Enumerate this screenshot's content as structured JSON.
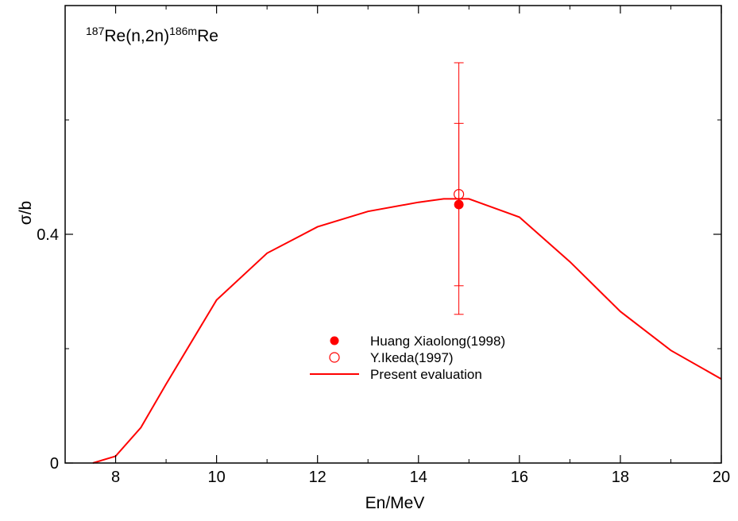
{
  "chart_data": {
    "type": "line",
    "title_parts": {
      "pre_sup": "187",
      "main": "Re(n,2n)",
      "mid_sup": "186m",
      "post": "Re"
    },
    "xlabel": "En/MeV",
    "ylabel": "σ/b",
    "xlim": [
      7,
      20
    ],
    "ylim": [
      0,
      0.8
    ],
    "x_ticks": [
      {
        "value": 8,
        "label": "8"
      },
      {
        "value": 10,
        "label": "10"
      },
      {
        "value": 12,
        "label": "12"
      },
      {
        "value": 14,
        "label": "14"
      },
      {
        "value": 16,
        "label": "16"
      },
      {
        "value": 18,
        "label": "18"
      },
      {
        "value": 20,
        "label": "20"
      }
    ],
    "x_minor_ticks": [
      9,
      11,
      13,
      15,
      17,
      19
    ],
    "y_ticks": [
      {
        "value": 0,
        "label": "0"
      },
      {
        "value": 0.4,
        "label": "0.4"
      }
    ],
    "y_minor_ticks": [
      0.2,
      0.6
    ],
    "grid": false,
    "legend_position": "center",
    "series": [
      {
        "name": "Huang Xiaolong(1998)",
        "kind": "scatter",
        "marker": "filled-circle",
        "color": "#ff0000",
        "points": [
          {
            "x": 14.8,
            "y": 0.452,
            "y_err_low": 0.142,
            "y_err_high": 0.142
          }
        ]
      },
      {
        "name": "Y.Ikeda(1997)",
        "kind": "scatter",
        "marker": "open-circle",
        "color": "#ff0000",
        "points": [
          {
            "x": 14.8,
            "y": 0.47,
            "y_err_low": 0.21,
            "y_err_high": 0.23
          }
        ]
      },
      {
        "name": "Present evaluation",
        "kind": "line",
        "color": "#ff0000",
        "points": [
          {
            "x": 7.55,
            "y": 0.0
          },
          {
            "x": 8.0,
            "y": 0.012
          },
          {
            "x": 8.5,
            "y": 0.062
          },
          {
            "x": 9.0,
            "y": 0.138
          },
          {
            "x": 10.0,
            "y": 0.285
          },
          {
            "x": 11.0,
            "y": 0.367
          },
          {
            "x": 12.0,
            "y": 0.413
          },
          {
            "x": 13.0,
            "y": 0.44
          },
          {
            "x": 14.0,
            "y": 0.456
          },
          {
            "x": 14.5,
            "y": 0.462
          },
          {
            "x": 15.0,
            "y": 0.462
          },
          {
            "x": 16.0,
            "y": 0.43
          },
          {
            "x": 17.0,
            "y": 0.352
          },
          {
            "x": 18.0,
            "y": 0.265
          },
          {
            "x": 19.0,
            "y": 0.197
          },
          {
            "x": 20.0,
            "y": 0.147
          }
        ]
      }
    ]
  }
}
